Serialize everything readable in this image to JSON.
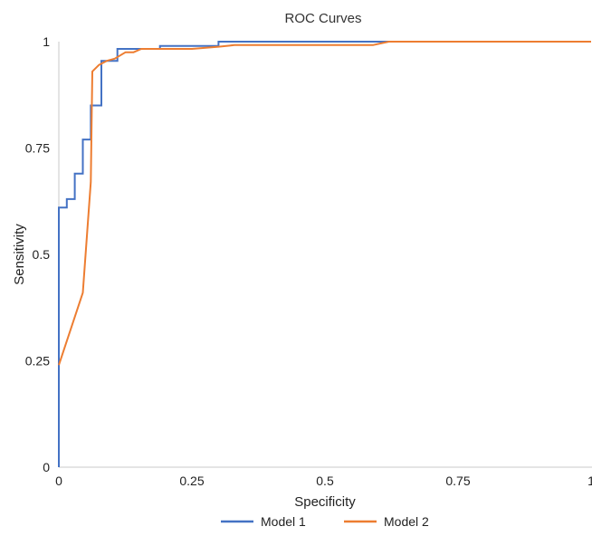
{
  "chart_data": {
    "type": "line",
    "title": "ROC Curves",
    "xlabel": "Specificity",
    "ylabel": "Sensitivity",
    "xlim": [
      0,
      1
    ],
    "ylim": [
      0,
      1
    ],
    "x_ticks": [
      "0",
      "0.25",
      "0.5",
      "0.75",
      "1"
    ],
    "y_ticks": [
      "0",
      "0.25",
      "0.5",
      "0.75",
      "1"
    ],
    "grid": false,
    "legend_position": "bottom",
    "series": [
      {
        "name": "Model 1",
        "color": "#4472C4",
        "step": true,
        "points": [
          [
            0,
            0
          ],
          [
            0,
            0.61
          ],
          [
            0.015,
            0.61
          ],
          [
            0.015,
            0.63
          ],
          [
            0.03,
            0.63
          ],
          [
            0.03,
            0.69
          ],
          [
            0.045,
            0.69
          ],
          [
            0.045,
            0.77
          ],
          [
            0.06,
            0.77
          ],
          [
            0.06,
            0.85
          ],
          [
            0.08,
            0.85
          ],
          [
            0.08,
            0.955
          ],
          [
            0.11,
            0.955
          ],
          [
            0.11,
            0.983
          ],
          [
            0.19,
            0.983
          ],
          [
            0.19,
            0.99
          ],
          [
            0.3,
            0.99
          ],
          [
            0.3,
            1.0
          ],
          [
            1.0,
            1.0
          ]
        ]
      },
      {
        "name": "Model 2",
        "color": "#ED7D31",
        "step": false,
        "points": [
          [
            0,
            0.24
          ],
          [
            0.045,
            0.41
          ],
          [
            0.06,
            0.67
          ],
          [
            0.063,
            0.93
          ],
          [
            0.075,
            0.945
          ],
          [
            0.09,
            0.955
          ],
          [
            0.105,
            0.96
          ],
          [
            0.125,
            0.975
          ],
          [
            0.14,
            0.975
          ],
          [
            0.155,
            0.983
          ],
          [
            0.25,
            0.983
          ],
          [
            0.3,
            0.988
          ],
          [
            0.33,
            0.992
          ],
          [
            0.59,
            0.992
          ],
          [
            0.62,
            1.0
          ],
          [
            1.0,
            1.0
          ]
        ]
      }
    ]
  }
}
